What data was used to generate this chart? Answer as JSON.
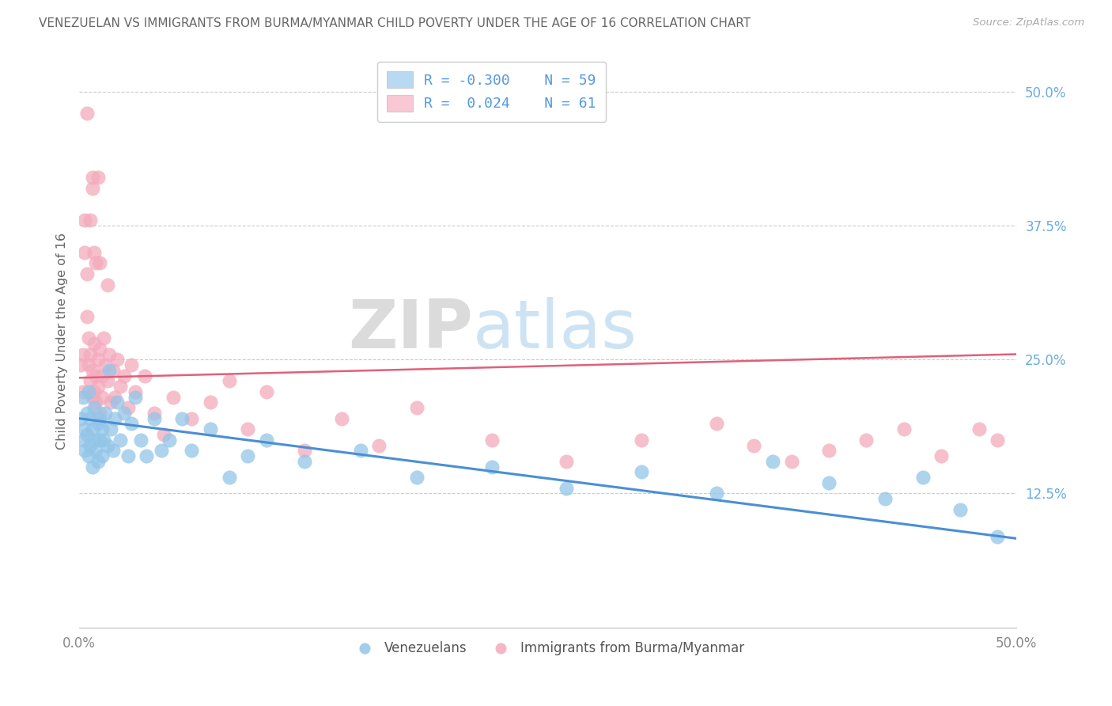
{
  "title": "VENEZUELAN VS IMMIGRANTS FROM BURMA/MYANMAR CHILD POVERTY UNDER THE AGE OF 16 CORRELATION CHART",
  "source": "Source: ZipAtlas.com",
  "ylabel": "Child Poverty Under the Age of 16",
  "ytick_labels": [
    "50.0%",
    "37.5%",
    "25.0%",
    "12.5%"
  ],
  "ytick_values": [
    0.5,
    0.375,
    0.25,
    0.125
  ],
  "legend_venezuelans": "Venezuelans",
  "legend_burma": "Immigrants from Burma/Myanmar",
  "r_venezuelan": "-0.300",
  "n_venezuelan": "59",
  "r_burma": "0.024",
  "n_burma": "61",
  "blue_color": "#92C5E8",
  "pink_color": "#F4AABC",
  "blue_line_color": "#4A8FD4",
  "pink_line_color": "#E0607A",
  "blue_legend_color": "#B8D9F2",
  "pink_legend_color": "#F9C8D4",
  "background_color": "#FFFFFF",
  "grid_color": "#CCCCCC",
  "title_color": "#666666",
  "watermark_zip": "ZIP",
  "watermark_atlas": "atlas",
  "venezuelan_x": [
    0.001,
    0.002,
    0.002,
    0.003,
    0.003,
    0.004,
    0.004,
    0.005,
    0.005,
    0.006,
    0.006,
    0.007,
    0.007,
    0.008,
    0.008,
    0.009,
    0.01,
    0.01,
    0.011,
    0.011,
    0.012,
    0.012,
    0.013,
    0.014,
    0.015,
    0.016,
    0.017,
    0.018,
    0.019,
    0.02,
    0.022,
    0.024,
    0.026,
    0.028,
    0.03,
    0.033,
    0.036,
    0.04,
    0.044,
    0.048,
    0.055,
    0.06,
    0.07,
    0.08,
    0.09,
    0.1,
    0.12,
    0.15,
    0.18,
    0.22,
    0.26,
    0.3,
    0.34,
    0.37,
    0.4,
    0.43,
    0.45,
    0.47,
    0.49
  ],
  "venezuelan_y": [
    0.195,
    0.175,
    0.215,
    0.185,
    0.165,
    0.2,
    0.18,
    0.22,
    0.16,
    0.195,
    0.17,
    0.185,
    0.15,
    0.205,
    0.175,
    0.165,
    0.19,
    0.155,
    0.175,
    0.195,
    0.16,
    0.185,
    0.175,
    0.2,
    0.17,
    0.24,
    0.185,
    0.165,
    0.195,
    0.21,
    0.175,
    0.2,
    0.16,
    0.19,
    0.215,
    0.175,
    0.16,
    0.195,
    0.165,
    0.175,
    0.195,
    0.165,
    0.185,
    0.14,
    0.16,
    0.175,
    0.155,
    0.165,
    0.14,
    0.15,
    0.13,
    0.145,
    0.125,
    0.155,
    0.135,
    0.12,
    0.14,
    0.11,
    0.085
  ],
  "burma_x": [
    0.001,
    0.002,
    0.002,
    0.003,
    0.003,
    0.004,
    0.004,
    0.005,
    0.005,
    0.006,
    0.006,
    0.007,
    0.007,
    0.008,
    0.008,
    0.009,
    0.009,
    0.01,
    0.01,
    0.011,
    0.011,
    0.012,
    0.012,
    0.013,
    0.014,
    0.015,
    0.016,
    0.017,
    0.018,
    0.019,
    0.02,
    0.022,
    0.024,
    0.026,
    0.028,
    0.03,
    0.035,
    0.04,
    0.045,
    0.05,
    0.06,
    0.07,
    0.08,
    0.09,
    0.1,
    0.12,
    0.14,
    0.16,
    0.18,
    0.22,
    0.26,
    0.3,
    0.34,
    0.36,
    0.38,
    0.4,
    0.42,
    0.44,
    0.46,
    0.48,
    0.49
  ],
  "burma_y": [
    0.245,
    0.22,
    0.255,
    0.38,
    0.35,
    0.29,
    0.33,
    0.245,
    0.27,
    0.23,
    0.255,
    0.215,
    0.24,
    0.265,
    0.22,
    0.235,
    0.21,
    0.25,
    0.225,
    0.2,
    0.26,
    0.235,
    0.215,
    0.27,
    0.245,
    0.23,
    0.255,
    0.21,
    0.24,
    0.215,
    0.25,
    0.225,
    0.235,
    0.205,
    0.245,
    0.22,
    0.235,
    0.2,
    0.18,
    0.215,
    0.195,
    0.21,
    0.23,
    0.185,
    0.22,
    0.165,
    0.195,
    0.17,
    0.205,
    0.175,
    0.155,
    0.175,
    0.19,
    0.17,
    0.155,
    0.165,
    0.175,
    0.185,
    0.16,
    0.185,
    0.175
  ],
  "burma_high_x": [
    0.004,
    0.006,
    0.007,
    0.007,
    0.008,
    0.009,
    0.01,
    0.011,
    0.015
  ],
  "burma_high_y": [
    0.48,
    0.38,
    0.42,
    0.41,
    0.35,
    0.34,
    0.42,
    0.34,
    0.32
  ]
}
